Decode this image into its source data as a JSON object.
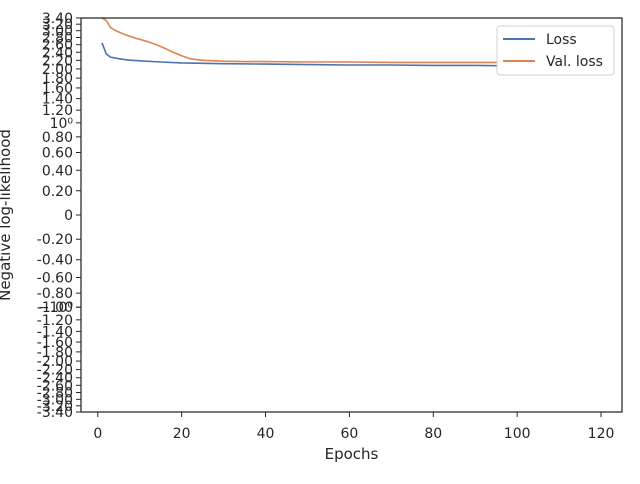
{
  "chart_data": {
    "type": "line",
    "title": "",
    "xlabel": "Epochs",
    "ylabel": "Negative log-likelihood",
    "xlim": [
      -4,
      125
    ],
    "ylim": [
      -3.4,
      3.4
    ],
    "yscale": "symlog",
    "grid": false,
    "legend_position": "top-right",
    "x_ticks": [
      0,
      20,
      40,
      60,
      80,
      100,
      120
    ],
    "y_ticks": [
      {
        "label": "-1.40",
        "value": -1.4
      },
      {
        "label": "-1.20",
        "value": -1.2
      },
      {
        "label": "-1.00",
        "value": -1.0
      },
      {
        "label": "-0.80",
        "value": -0.8
      },
      {
        "label": "-0.60",
        "value": -0.6
      },
      {
        "label": "-0.40",
        "value": -0.4
      },
      {
        "label": "-0.20",
        "value": -0.2
      },
      {
        "label": "0",
        "value": 0
      },
      {
        "label": "0.20",
        "value": 0.2
      },
      {
        "label": "0.40",
        "value": 0.4
      },
      {
        "label": "0.60",
        "value": 0.6
      },
      {
        "label": "0.80",
        "value": 0.8
      },
      {
        "label": "1.20",
        "value": 1.2
      },
      {
        "label": "1.40",
        "value": 1.4
      },
      {
        "label": "1.60",
        "value": 1.6
      },
      {
        "label": "1.80",
        "value": 1.8
      },
      {
        "label": "2.00",
        "value": 2.0
      },
      {
        "label": "2.20",
        "value": 2.2
      },
      {
        "label": "2.40",
        "value": 2.4
      },
      {
        "label": "2.60",
        "value": 2.6
      },
      {
        "label": "2.80",
        "value": 2.8
      },
      {
        "label": "3.00",
        "value": 3.0
      },
      {
        "label": "3.20",
        "value": 3.2
      },
      {
        "label": "3.40",
        "value": 3.4
      }
    ],
    "y_tick_labels_extra": [
      {
        "label": "10⁰",
        "value": 1.0
      },
      {
        "label": "−10⁰",
        "value": -1.0
      },
      {
        "label": "-1.60",
        "value": -1.6
      },
      {
        "label": "-1.80",
        "value": -1.8
      },
      {
        "label": "-2.00",
        "value": -2.0
      },
      {
        "label": "-2.20",
        "value": -2.2
      },
      {
        "label": "-2.40",
        "value": -2.4
      },
      {
        "label": "-2.60",
        "value": -2.6
      },
      {
        "label": "-2.80",
        "value": -2.8
      },
      {
        "label": "-3.00",
        "value": -3.0
      },
      {
        "label": "-3.20",
        "value": -3.2
      },
      {
        "label": "-3.40",
        "value": -3.4
      }
    ],
    "series": [
      {
        "name": "Loss",
        "color": "#4c72b0",
        "x": [
          1,
          2,
          3,
          5,
          7,
          10,
          15,
          20,
          25,
          30,
          40,
          50,
          60,
          70,
          80,
          90,
          100,
          110,
          119
        ],
        "y": [
          2.65,
          2.36,
          2.28,
          2.24,
          2.21,
          2.19,
          2.16,
          2.14,
          2.13,
          2.12,
          2.11,
          2.1,
          2.09,
          2.09,
          2.08,
          2.08,
          2.07,
          2.07,
          2.07
        ]
      },
      {
        "name": "Val. loss",
        "color": "#dd8452",
        "x": [
          1,
          2,
          3,
          4,
          5,
          6,
          7,
          8,
          9,
          10,
          12,
          14,
          16,
          18,
          20,
          22,
          25,
          30,
          35,
          40,
          50,
          60,
          70,
          80,
          90,
          100,
          110,
          119
        ],
        "y": [
          3.4,
          3.32,
          3.1,
          3.02,
          2.96,
          2.91,
          2.86,
          2.82,
          2.78,
          2.75,
          2.68,
          2.6,
          2.5,
          2.4,
          2.31,
          2.24,
          2.2,
          2.18,
          2.17,
          2.17,
          2.16,
          2.16,
          2.15,
          2.15,
          2.15,
          2.15,
          2.15,
          2.15
        ]
      }
    ]
  }
}
